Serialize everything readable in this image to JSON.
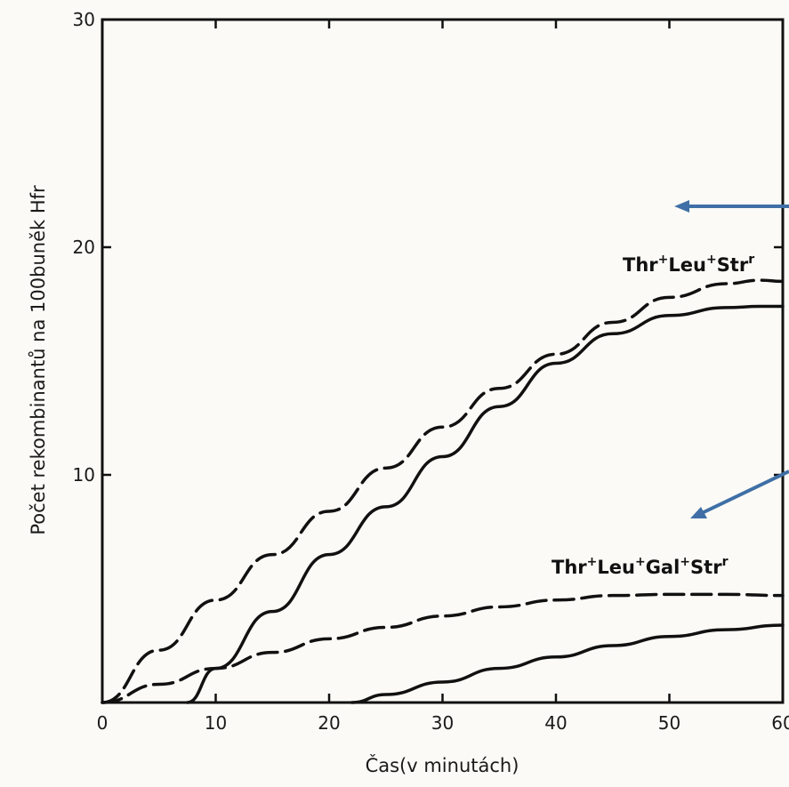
{
  "chart_data": {
    "type": "line",
    "title": "",
    "xlabel": "Čas(v minutách)",
    "ylabel": "Počet rekombinantů na 100buněk Hfr",
    "xlim": [
      0,
      60
    ],
    "ylim": [
      0,
      30
    ],
    "x_ticks": [
      0,
      10,
      20,
      30,
      40,
      50,
      60
    ],
    "y_ticks": [
      10,
      20,
      30
    ],
    "grid": false,
    "legend": "none",
    "annotations": [
      {
        "id": "a1",
        "base": "Thr",
        "parts": [
          [
            "+",
            "Leu"
          ],
          [
            "+",
            "Str"
          ],
          [
            "r",
            ""
          ]
        ]
      },
      {
        "id": "a2",
        "base": "Thr",
        "parts": [
          [
            "+",
            "Leu"
          ],
          [
            "+",
            "Gal"
          ],
          [
            "+",
            "Str"
          ],
          [
            "r",
            ""
          ]
        ]
      }
    ],
    "series": [
      {
        "style": "dashed",
        "x": [
          0,
          5,
          10,
          15,
          20,
          25,
          30,
          35,
          40,
          45,
          50,
          55,
          58,
          60
        ],
        "y": [
          0,
          2.3,
          4.5,
          6.5,
          8.4,
          10.3,
          12.1,
          13.8,
          15.3,
          16.7,
          17.8,
          18.4,
          18.55,
          18.5
        ]
      },
      {
        "style": "solid",
        "x": [
          7.5,
          10,
          15,
          20,
          25,
          30,
          35,
          40,
          45,
          50,
          55,
          58,
          60
        ],
        "y": [
          0,
          1.5,
          4,
          6.5,
          8.6,
          10.8,
          13,
          14.9,
          16.2,
          17,
          17.35,
          17.4,
          17.4
        ]
      },
      {
        "style": "dashed",
        "x": [
          0,
          5,
          10,
          15,
          20,
          25,
          30,
          35,
          40,
          45,
          50,
          55,
          60
        ],
        "y": [
          0,
          0.8,
          1.5,
          2.2,
          2.8,
          3.3,
          3.8,
          4.2,
          4.5,
          4.7,
          4.75,
          4.75,
          4.7
        ]
      },
      {
        "style": "solid",
        "x": [
          22,
          25,
          30,
          35,
          40,
          45,
          50,
          55,
          60
        ],
        "y": [
          0,
          0.35,
          0.9,
          1.5,
          2,
          2.5,
          2.9,
          3.2,
          3.4
        ]
      }
    ],
    "arrows_color": "#3f6fa6"
  }
}
